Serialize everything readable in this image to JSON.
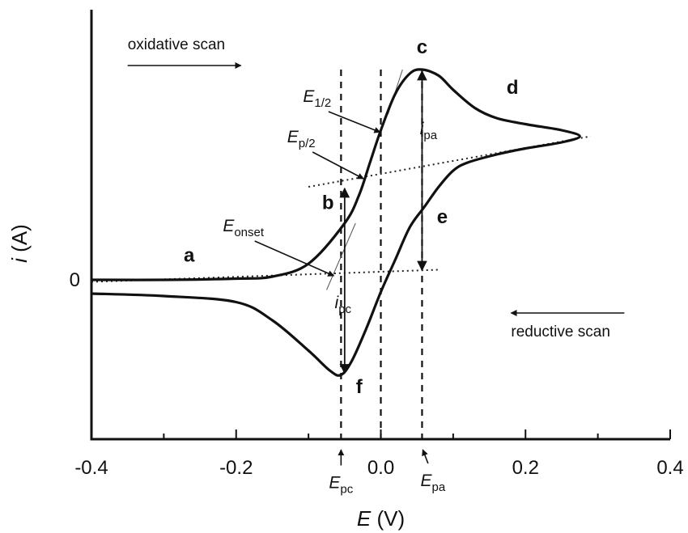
{
  "chart_data": {
    "type": "line",
    "title": "",
    "xlabel": {
      "italic": "E",
      "rest": " (V)"
    },
    "ylabel": {
      "italic": "i",
      "rest": " (A)"
    },
    "xlim": [
      -0.4,
      0.4
    ],
    "x_ticks": [
      {
        "value": -0.4,
        "label": "-0.4"
      },
      {
        "value": -0.2,
        "label": "-0.2"
      },
      {
        "value": 0.0,
        "label": "0.0"
      },
      {
        "value": 0.2,
        "label": "0.2"
      },
      {
        "value": 0.4,
        "label": "0.4"
      }
    ],
    "x_minor_ticks": [
      -0.3,
      -0.1,
      0.1,
      0.3
    ],
    "y_ticks": [
      {
        "value": 0,
        "label": "0"
      }
    ],
    "ylim": [
      -0.36,
      0.62
    ],
    "grid": false,
    "series": [
      {
        "points_forward": [
          [
            -0.4,
            0.0
          ],
          [
            -0.3,
            0.0
          ],
          [
            -0.2,
            0.003
          ],
          [
            -0.15,
            0.008
          ],
          [
            -0.1,
            0.04
          ],
          [
            -0.05,
            0.14
          ],
          [
            -0.03,
            0.21
          ],
          [
            -0.015,
            0.29
          ],
          [
            0.0,
            0.37
          ],
          [
            0.02,
            0.46
          ],
          [
            0.04,
            0.51
          ],
          [
            0.057,
            0.52
          ],
          [
            0.08,
            0.505
          ],
          [
            0.1,
            0.47
          ],
          [
            0.13,
            0.425
          ],
          [
            0.16,
            0.4
          ],
          [
            0.2,
            0.385
          ],
          [
            0.25,
            0.37
          ],
          [
            0.275,
            0.355
          ]
        ],
        "points_reverse": [
          [
            0.275,
            0.355
          ],
          [
            0.25,
            0.34
          ],
          [
            0.2,
            0.325
          ],
          [
            0.16,
            0.31
          ],
          [
            0.12,
            0.29
          ],
          [
            0.1,
            0.27
          ],
          [
            0.08,
            0.23
          ],
          [
            0.06,
            0.18
          ],
          [
            0.04,
            0.13
          ],
          [
            0.02,
            0.05
          ],
          [
            0.0,
            -0.03
          ],
          [
            -0.02,
            -0.12
          ],
          [
            -0.04,
            -0.2
          ],
          [
            -0.055,
            -0.235
          ],
          [
            -0.07,
            -0.225
          ],
          [
            -0.1,
            -0.175
          ],
          [
            -0.15,
            -0.1
          ],
          [
            -0.2,
            -0.055
          ],
          [
            -0.3,
            -0.04
          ],
          [
            -0.4,
            -0.034
          ]
        ]
      }
    ],
    "baselines": [
      {
        "from": [
          -0.4,
          -0.005
        ],
        "to": [
          0.08,
          0.025
        ]
      },
      {
        "from": [
          -0.1,
          0.23
        ],
        "to": [
          0.29,
          0.355
        ]
      }
    ],
    "vertical_lines": [
      -0.055,
      0.0,
      0.057
    ],
    "peak_currents": [
      {
        "label_italic": "i",
        "label_sub": "pa",
        "x": 0.057,
        "y_top": 0.52,
        "y_bottom": 0.02
      },
      {
        "label_italic": "i",
        "label_sub": "pc",
        "x": -0.05,
        "y_top": 0.23,
        "y_bottom": -0.235
      }
    ],
    "point_labels": [
      {
        "text": "a",
        "x": -0.265,
        "y": 0.045
      },
      {
        "text": "b",
        "x": -0.073,
        "y": 0.175
      },
      {
        "text": "c",
        "x": 0.057,
        "y": 0.56
      },
      {
        "text": "d",
        "x": 0.182,
        "y": 0.46
      },
      {
        "text": "e",
        "x": 0.085,
        "y": 0.14
      },
      {
        "text": "f",
        "x": -0.03,
        "y": -0.28
      }
    ],
    "potential_labels": [
      {
        "main": "E",
        "sub": "1/2",
        "text_x": -0.088,
        "text_y": 0.44,
        "to_x": -0.001,
        "to_y": 0.365
      },
      {
        "main": "E",
        "sub": "p/2",
        "text_x": -0.11,
        "text_y": 0.34,
        "to_x": -0.024,
        "to_y": 0.25
      },
      {
        "main": "E",
        "sub": "onset",
        "text_x": -0.19,
        "text_y": 0.12,
        "to_x": -0.065,
        "to_y": 0.01
      },
      {
        "main": "E",
        "sub": "pc",
        "text_x": -0.055,
        "text_y": -0.515,
        "to_x": -0.055,
        "to_y": -0.42
      },
      {
        "main": "E",
        "sub": "pa",
        "text_x": 0.072,
        "text_y": -0.51,
        "to_x": 0.058,
        "to_y": -0.42
      }
    ],
    "annotations": [
      {
        "text": "oxidative scan",
        "x": -0.35,
        "y": 0.57,
        "arrow": "right"
      },
      {
        "text": "reductive scan",
        "x": 0.18,
        "y": -0.14,
        "arrow": "left"
      }
    ]
  }
}
